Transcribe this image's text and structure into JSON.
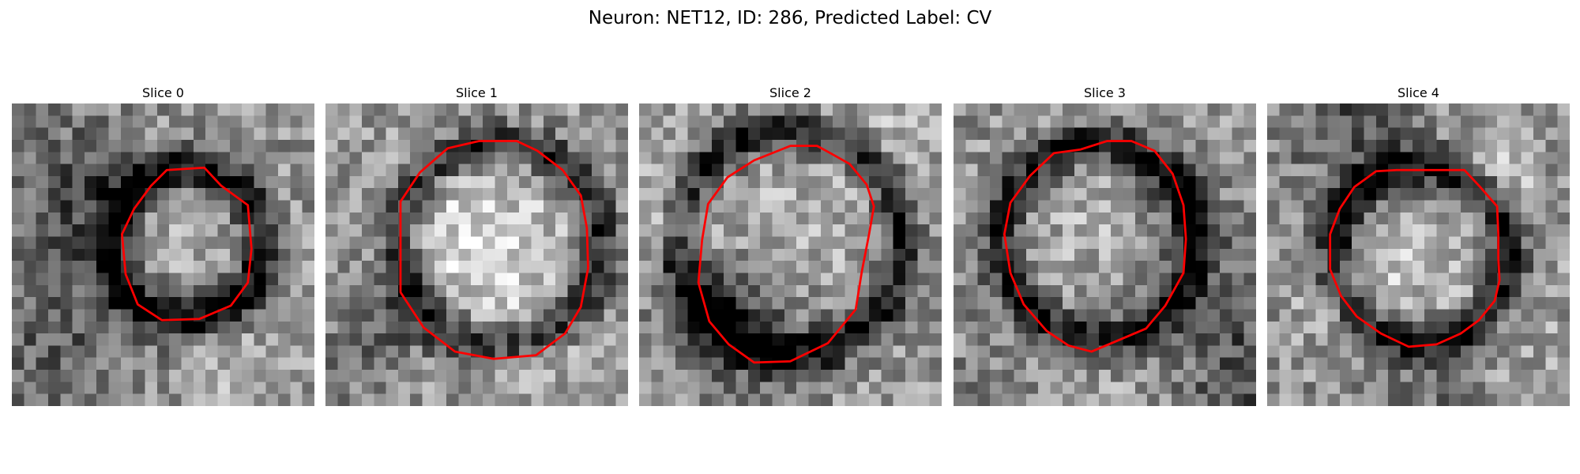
{
  "figure": {
    "title": "Neuron: NET12, ID: 286, Predicted Label: CV"
  },
  "panels": [
    {
      "title": "Slice 0",
      "seed": 11,
      "contour": [
        [
          12.3,
          5.0
        ],
        [
          15.4,
          4.8
        ],
        [
          16.8,
          6.3
        ],
        [
          19.0,
          7.9
        ],
        [
          19.3,
          11.5
        ],
        [
          19.0,
          14.3
        ],
        [
          17.6,
          16.2
        ],
        [
          15.0,
          17.3
        ],
        [
          11.9,
          17.4
        ],
        [
          9.9,
          16.1
        ],
        [
          8.9,
          13.6
        ],
        [
          8.6,
          10.3
        ],
        [
          9.6,
          8.2
        ],
        [
          11.0,
          6.3
        ]
      ],
      "ring_radius": 6.2,
      "ring_strength": 0.55
    },
    {
      "title": "Slice 1",
      "seed": 23,
      "contour": [
        [
          9.6,
          3.2
        ],
        [
          12.2,
          2.6
        ],
        [
          15.3,
          2.6
        ],
        [
          17.0,
          3.4
        ],
        [
          19.1,
          5.0
        ],
        [
          20.6,
          7.1
        ],
        [
          21.1,
          9.8
        ],
        [
          21.2,
          13.1
        ],
        [
          20.6,
          16.3
        ],
        [
          19.3,
          18.5
        ],
        [
          16.9,
          20.3
        ],
        [
          13.4,
          20.6
        ],
        [
          10.2,
          20.0
        ],
        [
          7.6,
          18.0
        ],
        [
          5.7,
          15.1
        ],
        [
          5.7,
          11.2
        ],
        [
          5.7,
          7.6
        ],
        [
          7.3,
          5.2
        ]
      ],
      "ring_radius": 8.3,
      "ring_strength": 0.45
    },
    {
      "title": "Slice 2",
      "seed": 37,
      "contour": [
        [
          9.0,
          4.2
        ],
        [
          12.0,
          3.0
        ],
        [
          14.2,
          3.0
        ],
        [
          15.3,
          3.6
        ],
        [
          16.9,
          4.5
        ],
        [
          18.3,
          6.2
        ],
        [
          18.9,
          8.0
        ],
        [
          18.5,
          10.3
        ],
        [
          17.9,
          13.4
        ],
        [
          17.4,
          16.5
        ],
        [
          15.1,
          19.3
        ],
        [
          12.0,
          20.8
        ],
        [
          9.0,
          20.9
        ],
        [
          6.9,
          19.4
        ],
        [
          5.3,
          17.5
        ],
        [
          4.4,
          14.3
        ],
        [
          4.7,
          10.8
        ],
        [
          5.2,
          7.8
        ],
        [
          6.8,
          5.6
        ]
      ],
      "ring_radius": 9.2,
      "ring_strength": 0.5
    },
    {
      "title": "Slice 3",
      "seed": 41,
      "contour": [
        [
          7.8,
          3.6
        ],
        [
          10.0,
          3.3
        ],
        [
          12.2,
          2.6
        ],
        [
          14.2,
          2.6
        ],
        [
          16.1,
          3.4
        ],
        [
          17.6,
          5.3
        ],
        [
          18.5,
          7.9
        ],
        [
          18.7,
          10.7
        ],
        [
          18.5,
          13.5
        ],
        [
          17.0,
          16.2
        ],
        [
          15.4,
          18.1
        ],
        [
          12.8,
          19.2
        ],
        [
          10.9,
          20.0
        ],
        [
          9.0,
          19.5
        ],
        [
          7.2,
          18.3
        ],
        [
          5.3,
          16.1
        ],
        [
          4.2,
          13.5
        ],
        [
          3.7,
          10.3
        ],
        [
          4.2,
          7.7
        ],
        [
          5.8,
          5.5
        ]
      ],
      "ring_radius": 8.0,
      "ring_strength": 0.5
    },
    {
      "title": "Slice 4",
      "seed": 59,
      "contour": [
        [
          8.5,
          5.1
        ],
        [
          10.2,
          5.0
        ],
        [
          13.3,
          5.0
        ],
        [
          15.8,
          5.0
        ],
        [
          17.1,
          6.4
        ],
        [
          18.5,
          8.0
        ],
        [
          18.6,
          10.3
        ],
        [
          18.6,
          12.3
        ],
        [
          18.7,
          14.1
        ],
        [
          18.3,
          15.8
        ],
        [
          17.0,
          17.4
        ],
        [
          15.5,
          18.5
        ],
        [
          13.5,
          19.4
        ],
        [
          11.2,
          19.6
        ],
        [
          8.9,
          18.5
        ],
        [
          6.9,
          17.1
        ],
        [
          5.6,
          15.4
        ],
        [
          4.7,
          13.2
        ],
        [
          4.7,
          10.3
        ],
        [
          5.5,
          8.2
        ],
        [
          6.7,
          6.4
        ]
      ],
      "ring_radius": 7.2,
      "ring_strength": 0.55
    }
  ],
  "contour_color": "#ff0000"
}
